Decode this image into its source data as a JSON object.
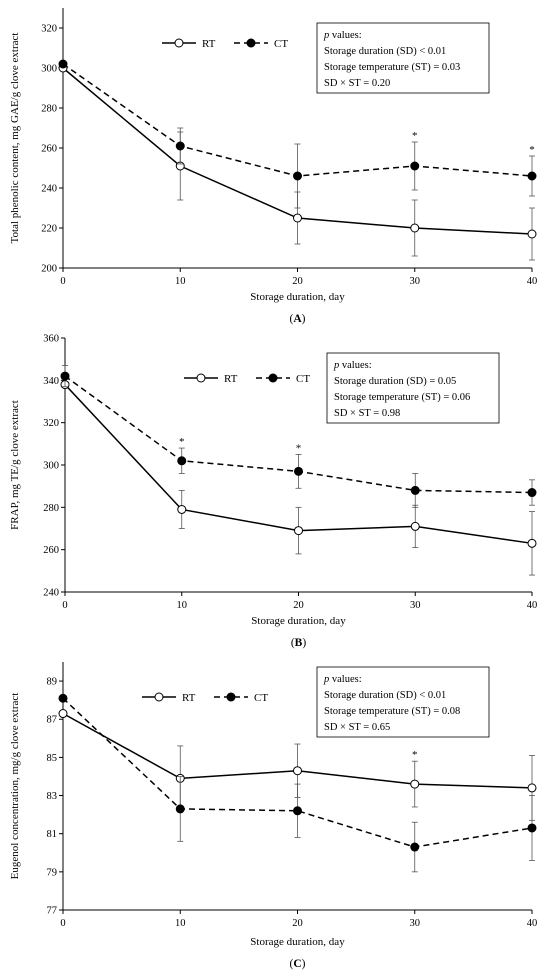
{
  "chart_data": [
    {
      "type": "line",
      "panel_label": "(A)",
      "x": [
        0,
        10,
        20,
        30,
        40
      ],
      "xlabel": "Storage duration, day",
      "ylabel": "Total phenolic content, mg GAE/g clove extract",
      "xlim": [
        0,
        40
      ],
      "ylim": [
        200,
        330
      ],
      "yticks": [
        200,
        220,
        240,
        260,
        280,
        300,
        320
      ],
      "xticks": [
        0,
        10,
        20,
        30,
        40
      ],
      "legend_placement": "top-left",
      "series": [
        {
          "name": "RT",
          "values": [
            300,
            251,
            225,
            220,
            217
          ],
          "errors": [
            0,
            17,
            13,
            14,
            13
          ],
          "line_style": "solid",
          "marker": "open-circle"
        },
        {
          "name": "CT",
          "values": [
            302,
            261,
            246,
            251,
            246
          ],
          "errors": [
            0,
            9,
            16,
            12,
            10
          ],
          "line_style": "dashed",
          "marker": "filled-circle"
        }
      ],
      "significance_markers": [
        {
          "x": 30,
          "label": "*"
        },
        {
          "x": 40,
          "label": "*"
        }
      ],
      "stats_box": {
        "heading_italic": "p",
        "heading_rest": " values:",
        "lines": [
          "Storage duration (SD) < 0.01",
          "Storage temperature (ST) = 0.03",
          "SD × ST = 0.20"
        ]
      }
    },
    {
      "type": "line",
      "panel_label": "(B)",
      "x": [
        0,
        10,
        20,
        30,
        40
      ],
      "xlabel": "Storage duration, day",
      "ylabel": "FRAP, mg TE/g clove extract",
      "xlim": [
        0,
        40
      ],
      "ylim": [
        240,
        360
      ],
      "yticks": [
        240,
        260,
        280,
        300,
        320,
        340,
        360
      ],
      "xticks": [
        0,
        10,
        20,
        30,
        40
      ],
      "legend_placement": "top-left",
      "series": [
        {
          "name": "RT",
          "values": [
            338,
            279,
            269,
            271,
            263
          ],
          "errors": [
            0,
            9,
            11,
            10,
            15
          ],
          "line_style": "solid",
          "marker": "open-circle"
        },
        {
          "name": "CT",
          "values": [
            342,
            302,
            297,
            288,
            287
          ],
          "errors": [
            5,
            6,
            8,
            8,
            6
          ],
          "line_style": "dashed",
          "marker": "filled-circle"
        }
      ],
      "significance_markers": [
        {
          "x": 10,
          "label": "*"
        },
        {
          "x": 20,
          "label": "*"
        }
      ],
      "stats_box": {
        "heading_italic": "p",
        "heading_rest": " values:",
        "lines": [
          "Storage duration (SD) = 0.05",
          "Storage temperature (ST) = 0.06",
          "SD × ST = 0.98"
        ]
      }
    },
    {
      "type": "line",
      "panel_label": "(C)",
      "x": [
        0,
        10,
        20,
        30,
        40
      ],
      "xlabel": "Storage duration, day",
      "ylabel": "Eugenol concentration, mg/g clove extract",
      "xlim": [
        0,
        40
      ],
      "ylim": [
        77,
        90
      ],
      "yticks": [
        77,
        79,
        81,
        83,
        85,
        87,
        89
      ],
      "xticks": [
        0,
        10,
        20,
        30,
        40
      ],
      "legend_placement": "top-left",
      "series": [
        {
          "name": "RT",
          "values": [
            87.3,
            83.9,
            84.3,
            83.6,
            83.4
          ],
          "errors": [
            0,
            1.7,
            1.4,
            1.2,
            1.7
          ],
          "line_style": "solid",
          "marker": "open-circle"
        },
        {
          "name": "CT",
          "values": [
            88.1,
            82.3,
            82.2,
            80.3,
            81.3
          ],
          "errors": [
            0,
            1.7,
            1.4,
            1.3,
            1.7
          ],
          "line_style": "dashed",
          "marker": "filled-circle"
        }
      ],
      "significance_markers": [
        {
          "x": 30,
          "label": "*"
        }
      ],
      "stats_box": {
        "heading_italic": "p",
        "heading_rest": " values:",
        "lines": [
          "Storage duration (SD) < 0.01",
          "Storage temperature (ST) = 0.08",
          "SD × ST = 0.65"
        ]
      }
    }
  ]
}
